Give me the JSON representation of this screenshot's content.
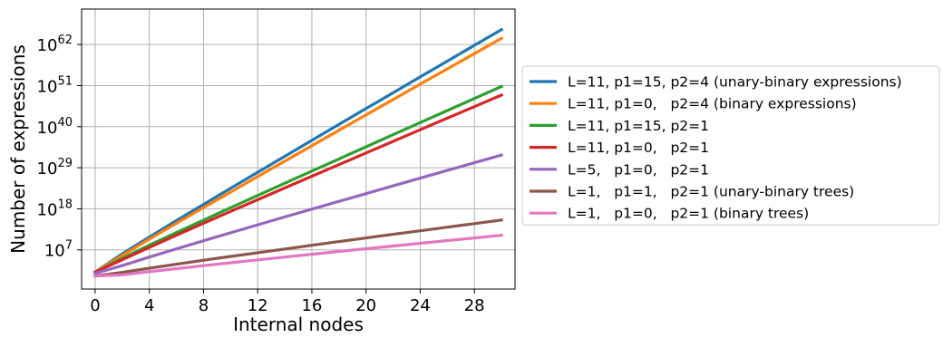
{
  "chart_data": {
    "type": "line",
    "title": "",
    "xlabel": "Internal nodes",
    "ylabel": "Number of expressions",
    "y_scale": "log10",
    "xlim": [
      -1,
      31
    ],
    "ylim_log10": [
      -3.5,
      71.5
    ],
    "grid": true,
    "legend_position": "outside-right",
    "x_ticks": [
      0,
      4,
      8,
      12,
      16,
      20,
      24,
      28
    ],
    "y_ticks": [
      {
        "exp": 7,
        "base": "10",
        "sup": "7"
      },
      {
        "exp": 18,
        "base": "10",
        "sup": "18"
      },
      {
        "exp": 29,
        "base": "10",
        "sup": "29"
      },
      {
        "exp": 40,
        "base": "10",
        "sup": "40"
      },
      {
        "exp": 51,
        "base": "10",
        "sup": "51"
      },
      {
        "exp": 62,
        "base": "10",
        "sup": "62"
      }
    ],
    "x": [
      0,
      2,
      4,
      6,
      8,
      10,
      12,
      14,
      16,
      18,
      20,
      22,
      24,
      26,
      28,
      30
    ],
    "series": [
      {
        "name": "L=11, p1=15, p2=4 (unary-binary expressions)",
        "color": "#1f77b4",
        "log10_values": [
          1.04,
          5.94,
          10.44,
          14.84,
          19.18,
          23.5,
          27.79,
          32.07,
          36.33,
          40.59,
          44.84,
          49.08,
          53.32,
          57.55,
          61.78,
          66.0
        ]
      },
      {
        "name": "L=11, p1=0,   p2=4 (binary expressions)",
        "color": "#ff7f0e",
        "log10_values": [
          1.04,
          5.54,
          9.87,
          14.11,
          18.31,
          22.48,
          26.64,
          30.78,
          34.91,
          39.03,
          43.15,
          47.26,
          51.37,
          55.47,
          59.57,
          63.67
        ]
      },
      {
        "name": "L=11, p1=15, p2=1",
        "color": "#2ca02c",
        "log10_values": [
          1.04,
          4.74,
          8.24,
          11.64,
          14.98,
          18.29,
          21.58,
          24.85,
          28.11,
          31.36,
          34.61,
          37.85,
          41.08,
          44.31,
          47.54,
          50.77
        ]
      },
      {
        "name": "L=11, p1=0,   p2=1",
        "color": "#d62728",
        "log10_values": [
          1.04,
          4.34,
          7.67,
          10.92,
          14.12,
          17.29,
          20.44,
          23.58,
          26.71,
          29.83,
          32.95,
          36.06,
          39.17,
          42.27,
          45.37,
          48.47
        ]
      },
      {
        "name": "L=5,   p1=0,   p2=1",
        "color": "#9467bd",
        "log10_values": [
          0.7,
          2.78,
          5.06,
          7.27,
          9.44,
          11.58,
          13.7,
          15.81,
          17.9,
          19.99,
          22.07,
          24.14,
          26.21,
          28.27,
          30.33,
          32.39
        ]
      },
      {
        "name": "L=1,   p1=1,   p2=1 (unary-binary trees)",
        "color": "#8c564b",
        "log10_values": [
          0.0,
          0.97,
          2.09,
          3.16,
          4.21,
          5.23,
          6.24,
          7.24,
          8.23,
          9.21,
          10.18,
          11.15,
          12.11,
          13.07,
          14.03,
          14.99
        ]
      },
      {
        "name": "L=1,   p1=0,   p2=1 (binary trees)",
        "color": "#e377c2",
        "log10_values": [
          0.0,
          0.3,
          1.15,
          1.96,
          2.77,
          3.55,
          4.32,
          5.08,
          5.83,
          6.57,
          7.31,
          8.04,
          8.76,
          9.48,
          10.2,
          10.91
        ]
      }
    ]
  }
}
